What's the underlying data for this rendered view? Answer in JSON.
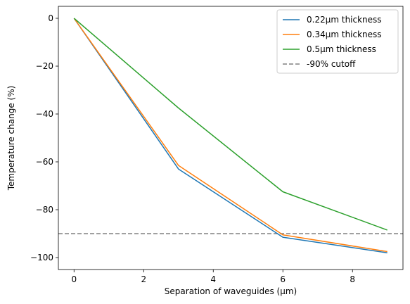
{
  "chart_data": {
    "type": "line",
    "title": "",
    "xlabel": "Separation of waveguides (μm)",
    "ylabel": "Temperature change (%)",
    "xlim": [
      -0.45,
      9.45
    ],
    "ylim": [
      -105,
      5
    ],
    "xticks": [
      0,
      2,
      4,
      6,
      8
    ],
    "yticks": [
      0,
      -20,
      -40,
      -60,
      -80,
      -100
    ],
    "ytick_labels": [
      "0",
      "−20",
      "−40",
      "−60",
      "−80",
      "−100"
    ],
    "grid": false,
    "legend_position": "top-right",
    "series": [
      {
        "name": "0.22μm thickness",
        "color": "#1f77b4",
        "x": [
          0,
          3,
          6,
          9
        ],
        "y": [
          0,
          -63,
          -91.5,
          -98
        ]
      },
      {
        "name": "0.34μm thickness",
        "color": "#ff7f0e",
        "x": [
          0,
          3,
          6,
          9
        ],
        "y": [
          0,
          -61.5,
          -90.5,
          -97.5
        ]
      },
      {
        "name": "0.5μm thickness",
        "color": "#2ca02c",
        "x": [
          0,
          3,
          6,
          9
        ],
        "y": [
          0,
          -37.5,
          -72.5,
          -88.5
        ]
      }
    ],
    "reference_lines": [
      {
        "name": "-90% cutoff",
        "color": "#808080",
        "style": "dashed",
        "orientation": "horizontal",
        "y": -90
      }
    ]
  }
}
